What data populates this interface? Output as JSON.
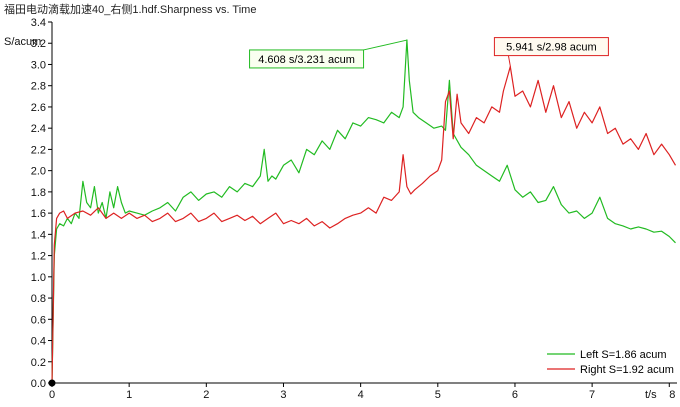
{
  "chart_data": {
    "type": "line",
    "title": "福田电动滴载加速40_右侧1.hdf.Sharpness vs. Time",
    "xlabel": "t/s",
    "ylabel": "S/acum",
    "xlim": [
      0,
      8.1
    ],
    "ylim": [
      0,
      3.4
    ],
    "xticks": [
      "0",
      "1",
      "2",
      "3",
      "4",
      "5",
      "6",
      "7",
      "8"
    ],
    "yticks": [
      "0.0",
      "0.2",
      "0.4",
      "0.6",
      "0.8",
      "1.0",
      "1.2",
      "1.4",
      "1.6",
      "1.8",
      "2.0",
      "2.2",
      "2.4",
      "2.6",
      "2.8",
      "3.0",
      "3.2",
      "3.4"
    ],
    "grid": false,
    "legend_position": "bottom-right",
    "series": [
      {
        "name": "Left S=1.86 acum",
        "color": "#22bb22",
        "x": [
          0,
          0.03,
          0.06,
          0.1,
          0.15,
          0.2,
          0.25,
          0.3,
          0.35,
          0.4,
          0.45,
          0.5,
          0.55,
          0.6,
          0.65,
          0.7,
          0.75,
          0.8,
          0.85,
          0.9,
          0.95,
          1.0,
          1.1,
          1.2,
          1.3,
          1.4,
          1.5,
          1.6,
          1.7,
          1.8,
          1.9,
          2.0,
          2.1,
          2.2,
          2.3,
          2.4,
          2.5,
          2.6,
          2.7,
          2.75,
          2.8,
          2.85,
          2.9,
          3.0,
          3.1,
          3.2,
          3.3,
          3.4,
          3.5,
          3.6,
          3.7,
          3.8,
          3.9,
          4.0,
          4.1,
          4.2,
          4.3,
          4.4,
          4.5,
          4.55,
          4.6,
          4.63,
          4.68,
          4.75,
          4.85,
          4.95,
          5.05,
          5.1,
          5.15,
          5.2,
          5.3,
          5.4,
          5.5,
          5.6,
          5.7,
          5.8,
          5.9,
          6.0,
          6.1,
          6.2,
          6.3,
          6.4,
          6.5,
          6.6,
          6.7,
          6.8,
          6.9,
          7.0,
          7.1,
          7.2,
          7.3,
          7.4,
          7.5,
          7.6,
          7.7,
          7.8,
          7.9,
          8.0,
          8.08
        ],
        "y": [
          0.0,
          1.2,
          1.45,
          1.5,
          1.48,
          1.55,
          1.5,
          1.6,
          1.55,
          1.9,
          1.7,
          1.65,
          1.85,
          1.6,
          1.7,
          1.55,
          1.8,
          1.65,
          1.85,
          1.7,
          1.6,
          1.62,
          1.6,
          1.58,
          1.62,
          1.65,
          1.7,
          1.62,
          1.75,
          1.8,
          1.72,
          1.78,
          1.8,
          1.75,
          1.85,
          1.8,
          1.88,
          1.85,
          1.95,
          2.2,
          1.9,
          1.95,
          1.92,
          2.05,
          2.1,
          1.98,
          2.2,
          2.15,
          2.28,
          2.2,
          2.38,
          2.3,
          2.45,
          2.42,
          2.5,
          2.48,
          2.45,
          2.55,
          2.5,
          2.6,
          3.23,
          2.85,
          2.55,
          2.5,
          2.45,
          2.4,
          2.42,
          2.38,
          2.85,
          2.35,
          2.22,
          2.15,
          2.05,
          2.0,
          1.95,
          1.9,
          2.05,
          1.82,
          1.75,
          1.8,
          1.7,
          1.72,
          1.85,
          1.68,
          1.6,
          1.62,
          1.55,
          1.6,
          1.75,
          1.55,
          1.5,
          1.48,
          1.45,
          1.47,
          1.45,
          1.42,
          1.43,
          1.38,
          1.32
        ]
      },
      {
        "name": "Right S=1.92 acum",
        "color": "#dd2222",
        "x": [
          0,
          0.03,
          0.06,
          0.1,
          0.15,
          0.2,
          0.3,
          0.4,
          0.5,
          0.6,
          0.7,
          0.8,
          0.9,
          1.0,
          1.1,
          1.2,
          1.3,
          1.4,
          1.5,
          1.6,
          1.7,
          1.8,
          1.9,
          2.0,
          2.1,
          2.2,
          2.3,
          2.4,
          2.5,
          2.6,
          2.7,
          2.8,
          2.9,
          3.0,
          3.1,
          3.2,
          3.3,
          3.4,
          3.5,
          3.6,
          3.7,
          3.8,
          3.9,
          4.0,
          4.1,
          4.2,
          4.3,
          4.4,
          4.5,
          4.55,
          4.6,
          4.65,
          4.7,
          4.8,
          4.9,
          5.0,
          5.05,
          5.1,
          5.15,
          5.2,
          5.25,
          5.3,
          5.4,
          5.5,
          5.6,
          5.7,
          5.8,
          5.85,
          5.94,
          6.0,
          6.1,
          6.2,
          6.3,
          6.4,
          6.5,
          6.6,
          6.7,
          6.8,
          6.9,
          7.0,
          7.1,
          7.2,
          7.3,
          7.4,
          7.5,
          7.6,
          7.7,
          7.8,
          7.9,
          8.0,
          8.08
        ],
        "y": [
          0.0,
          1.3,
          1.55,
          1.6,
          1.62,
          1.55,
          1.6,
          1.62,
          1.58,
          1.65,
          1.55,
          1.6,
          1.55,
          1.6,
          1.55,
          1.58,
          1.52,
          1.55,
          1.6,
          1.52,
          1.55,
          1.6,
          1.52,
          1.55,
          1.6,
          1.52,
          1.55,
          1.58,
          1.53,
          1.57,
          1.5,
          1.55,
          1.6,
          1.5,
          1.53,
          1.5,
          1.55,
          1.48,
          1.52,
          1.46,
          1.5,
          1.55,
          1.58,
          1.6,
          1.65,
          1.6,
          1.75,
          1.72,
          1.8,
          2.15,
          1.85,
          1.78,
          1.82,
          1.88,
          1.95,
          2.0,
          2.1,
          2.65,
          2.75,
          2.3,
          2.72,
          2.45,
          2.35,
          2.5,
          2.45,
          2.6,
          2.55,
          2.75,
          2.98,
          2.7,
          2.75,
          2.6,
          2.85,
          2.55,
          2.8,
          2.5,
          2.65,
          2.4,
          2.55,
          2.45,
          2.6,
          2.35,
          2.4,
          2.25,
          2.3,
          2.2,
          2.35,
          2.15,
          2.25,
          2.15,
          2.05
        ]
      }
    ],
    "annotations": [
      {
        "text": "4.608 s/3.231 acum",
        "x": 4.608,
        "y": 3.231,
        "color": "#22bb22"
      },
      {
        "text": "5.941 s/2.98 acum",
        "x": 5.941,
        "y": 2.98,
        "color": "#dd2222"
      }
    ]
  }
}
